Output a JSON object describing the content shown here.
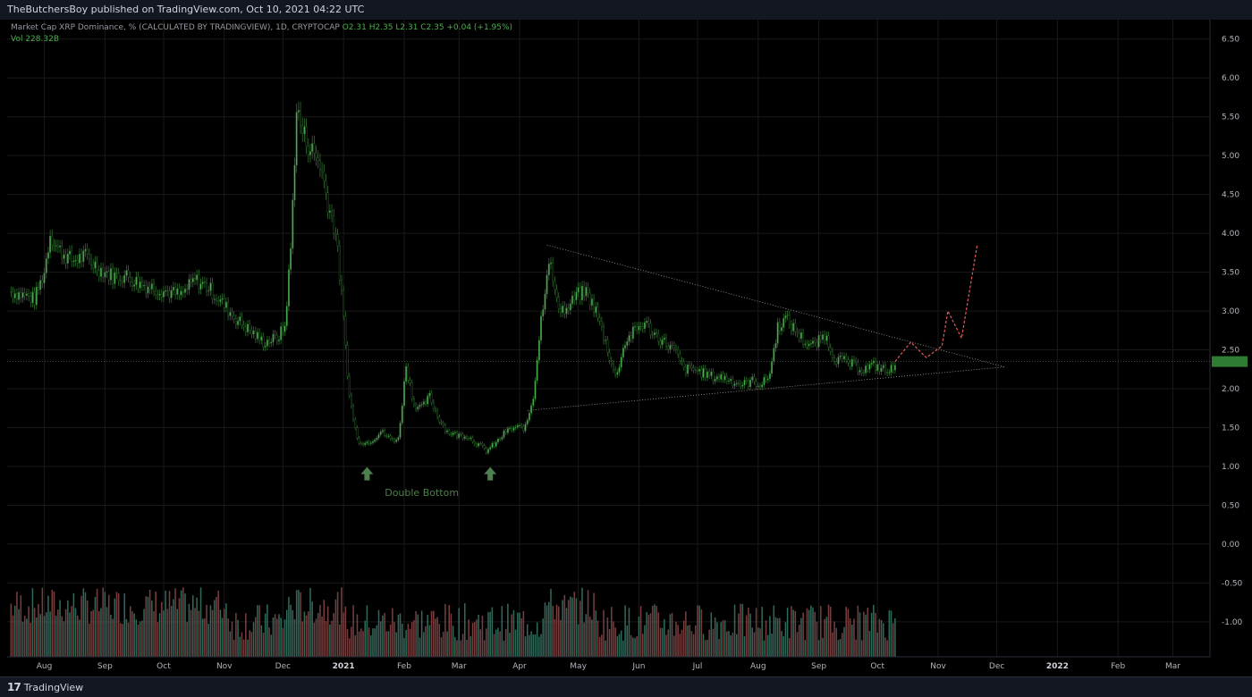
{
  "header": {
    "publish_text": "TheButchersBoy published on TradingView.com, Oct 10, 2021 04:22 UTC"
  },
  "legend": {
    "line1_prefix": "Market Cap XRP Dominance, % (CALCULATED BY TRADINGVIEW), 1D, CRYPTOCAP",
    "ohlc": "O2.31 H2.35 L2.31 C2.35 +0.04 (+1.95%)",
    "vol": "Vol 228.32B"
  },
  "footer": {
    "logo_text": "TradingView",
    "logo_mark": "17"
  },
  "colors": {
    "up": "#4caf50",
    "down": "#000000",
    "wick": "#2f6b2f",
    "volume_up": "#3a7a6a",
    "volume_down": "#8a4a4a",
    "trendline": "#9e9e9e",
    "projection": "#e05a5a",
    "current_price": "#2e7d32",
    "annotation": "#4e7f4e",
    "grid": "#1a1a1a"
  },
  "chart_data": {
    "type": "candlestick",
    "ylim": [
      -1.45,
      6.75
    ],
    "y_ticks": [
      "6.50",
      "6.00",
      "5.50",
      "5.00",
      "4.50",
      "4.00",
      "3.50",
      "3.00",
      "2.50",
      "2.00",
      "1.50",
      "1.00",
      "0.50",
      "0.00",
      "-0.50",
      "-1.00"
    ],
    "x_ticks": [
      "Aug",
      "Sep",
      "Oct",
      "Nov",
      "Dec",
      "2021",
      "Feb",
      "Mar",
      "Apr",
      "May",
      "Jun",
      "Jul",
      "Aug",
      "Sep",
      "Oct",
      "Nov",
      "Dec",
      "2022",
      "Feb",
      "Mar"
    ],
    "x_ticks_bold": [
      "2021",
      "2022"
    ],
    "current_price": 2.35,
    "annotation": "Double Bottom",
    "series": [
      {
        "date": "2020-07-15",
        "close": 3.25
      },
      {
        "date": "2020-07-22",
        "close": 3.2
      },
      {
        "date": "2020-07-27",
        "close": 3.15
      },
      {
        "date": "2020-08-01",
        "close": 3.5
      },
      {
        "date": "2020-08-04",
        "close": 4.0
      },
      {
        "date": "2020-08-08",
        "close": 3.8
      },
      {
        "date": "2020-08-15",
        "close": 3.65
      },
      {
        "date": "2020-08-22",
        "close": 3.7
      },
      {
        "date": "2020-08-29",
        "close": 3.55
      },
      {
        "date": "2020-09-05",
        "close": 3.45
      },
      {
        "date": "2020-09-12",
        "close": 3.45
      },
      {
        "date": "2020-09-19",
        "close": 3.35
      },
      {
        "date": "2020-09-26",
        "close": 3.3
      },
      {
        "date": "2020-10-03",
        "close": 3.25
      },
      {
        "date": "2020-10-10",
        "close": 3.2
      },
      {
        "date": "2020-10-17",
        "close": 3.4
      },
      {
        "date": "2020-10-24",
        "close": 3.3
      },
      {
        "date": "2020-10-31",
        "close": 3.1
      },
      {
        "date": "2020-11-07",
        "close": 2.9
      },
      {
        "date": "2020-11-14",
        "close": 2.75
      },
      {
        "date": "2020-11-21",
        "close": 2.6
      },
      {
        "date": "2020-11-28",
        "close": 2.65
      },
      {
        "date": "2020-12-02",
        "close": 2.8
      },
      {
        "date": "2020-12-05",
        "close": 3.8
      },
      {
        "date": "2020-12-08",
        "close": 5.6
      },
      {
        "date": "2020-12-11",
        "close": 5.3
      },
      {
        "date": "2020-12-15",
        "close": 5.1
      },
      {
        "date": "2020-12-20",
        "close": 4.9
      },
      {
        "date": "2020-12-24",
        "close": 4.4
      },
      {
        "date": "2020-12-28",
        "close": 4.0
      },
      {
        "date": "2020-12-31",
        "close": 3.2
      },
      {
        "date": "2021-01-04",
        "close": 1.9
      },
      {
        "date": "2021-01-08",
        "close": 1.35
      },
      {
        "date": "2021-01-12",
        "close": 1.3
      },
      {
        "date": "2021-01-16",
        "close": 1.35
      },
      {
        "date": "2021-01-20",
        "close": 1.45
      },
      {
        "date": "2021-01-25",
        "close": 1.35
      },
      {
        "date": "2021-01-29",
        "close": 1.35
      },
      {
        "date": "2021-02-02",
        "close": 2.3
      },
      {
        "date": "2021-02-06",
        "close": 1.8
      },
      {
        "date": "2021-02-10",
        "close": 1.75
      },
      {
        "date": "2021-02-14",
        "close": 1.9
      },
      {
        "date": "2021-02-18",
        "close": 1.65
      },
      {
        "date": "2021-02-23",
        "close": 1.45
      },
      {
        "date": "2021-02-28",
        "close": 1.4
      },
      {
        "date": "2021-03-05",
        "close": 1.4
      },
      {
        "date": "2021-03-10",
        "close": 1.3
      },
      {
        "date": "2021-03-15",
        "close": 1.2
      },
      {
        "date": "2021-03-20",
        "close": 1.3
      },
      {
        "date": "2021-03-25",
        "close": 1.45
      },
      {
        "date": "2021-03-30",
        "close": 1.5
      },
      {
        "date": "2021-04-04",
        "close": 1.5
      },
      {
        "date": "2021-04-08",
        "close": 1.9
      },
      {
        "date": "2021-04-12",
        "close": 2.9
      },
      {
        "date": "2021-04-16",
        "close": 3.7
      },
      {
        "date": "2021-04-20",
        "close": 3.1
      },
      {
        "date": "2021-04-25",
        "close": 3.0
      },
      {
        "date": "2021-04-30",
        "close": 3.2
      },
      {
        "date": "2021-05-05",
        "close": 3.25
      },
      {
        "date": "2021-05-10",
        "close": 3.0
      },
      {
        "date": "2021-05-15",
        "close": 2.6
      },
      {
        "date": "2021-05-20",
        "close": 2.15
      },
      {
        "date": "2021-05-25",
        "close": 2.6
      },
      {
        "date": "2021-05-30",
        "close": 2.75
      },
      {
        "date": "2021-06-04",
        "close": 2.85
      },
      {
        "date": "2021-06-09",
        "close": 2.7
      },
      {
        "date": "2021-06-14",
        "close": 2.6
      },
      {
        "date": "2021-06-19",
        "close": 2.5
      },
      {
        "date": "2021-06-24",
        "close": 2.25
      },
      {
        "date": "2021-06-29",
        "close": 2.25
      },
      {
        "date": "2021-07-04",
        "close": 2.2
      },
      {
        "date": "2021-07-09",
        "close": 2.15
      },
      {
        "date": "2021-07-14",
        "close": 2.15
      },
      {
        "date": "2021-07-19",
        "close": 2.1
      },
      {
        "date": "2021-07-24",
        "close": 2.05
      },
      {
        "date": "2021-07-29",
        "close": 2.1
      },
      {
        "date": "2021-08-03",
        "close": 2.05
      },
      {
        "date": "2021-08-07",
        "close": 2.2
      },
      {
        "date": "2021-08-11",
        "close": 2.8
      },
      {
        "date": "2021-08-15",
        "close": 2.9
      },
      {
        "date": "2021-08-20",
        "close": 2.75
      },
      {
        "date": "2021-08-25",
        "close": 2.6
      },
      {
        "date": "2021-08-30",
        "close": 2.55
      },
      {
        "date": "2021-09-04",
        "close": 2.7
      },
      {
        "date": "2021-09-09",
        "close": 2.4
      },
      {
        "date": "2021-09-14",
        "close": 2.35
      },
      {
        "date": "2021-09-19",
        "close": 2.3
      },
      {
        "date": "2021-09-24",
        "close": 2.25
      },
      {
        "date": "2021-09-29",
        "close": 2.3
      },
      {
        "date": "2021-10-04",
        "close": 2.25
      },
      {
        "date": "2021-10-07",
        "close": 2.2
      },
      {
        "date": "2021-10-10",
        "close": 2.35
      }
    ]
  }
}
